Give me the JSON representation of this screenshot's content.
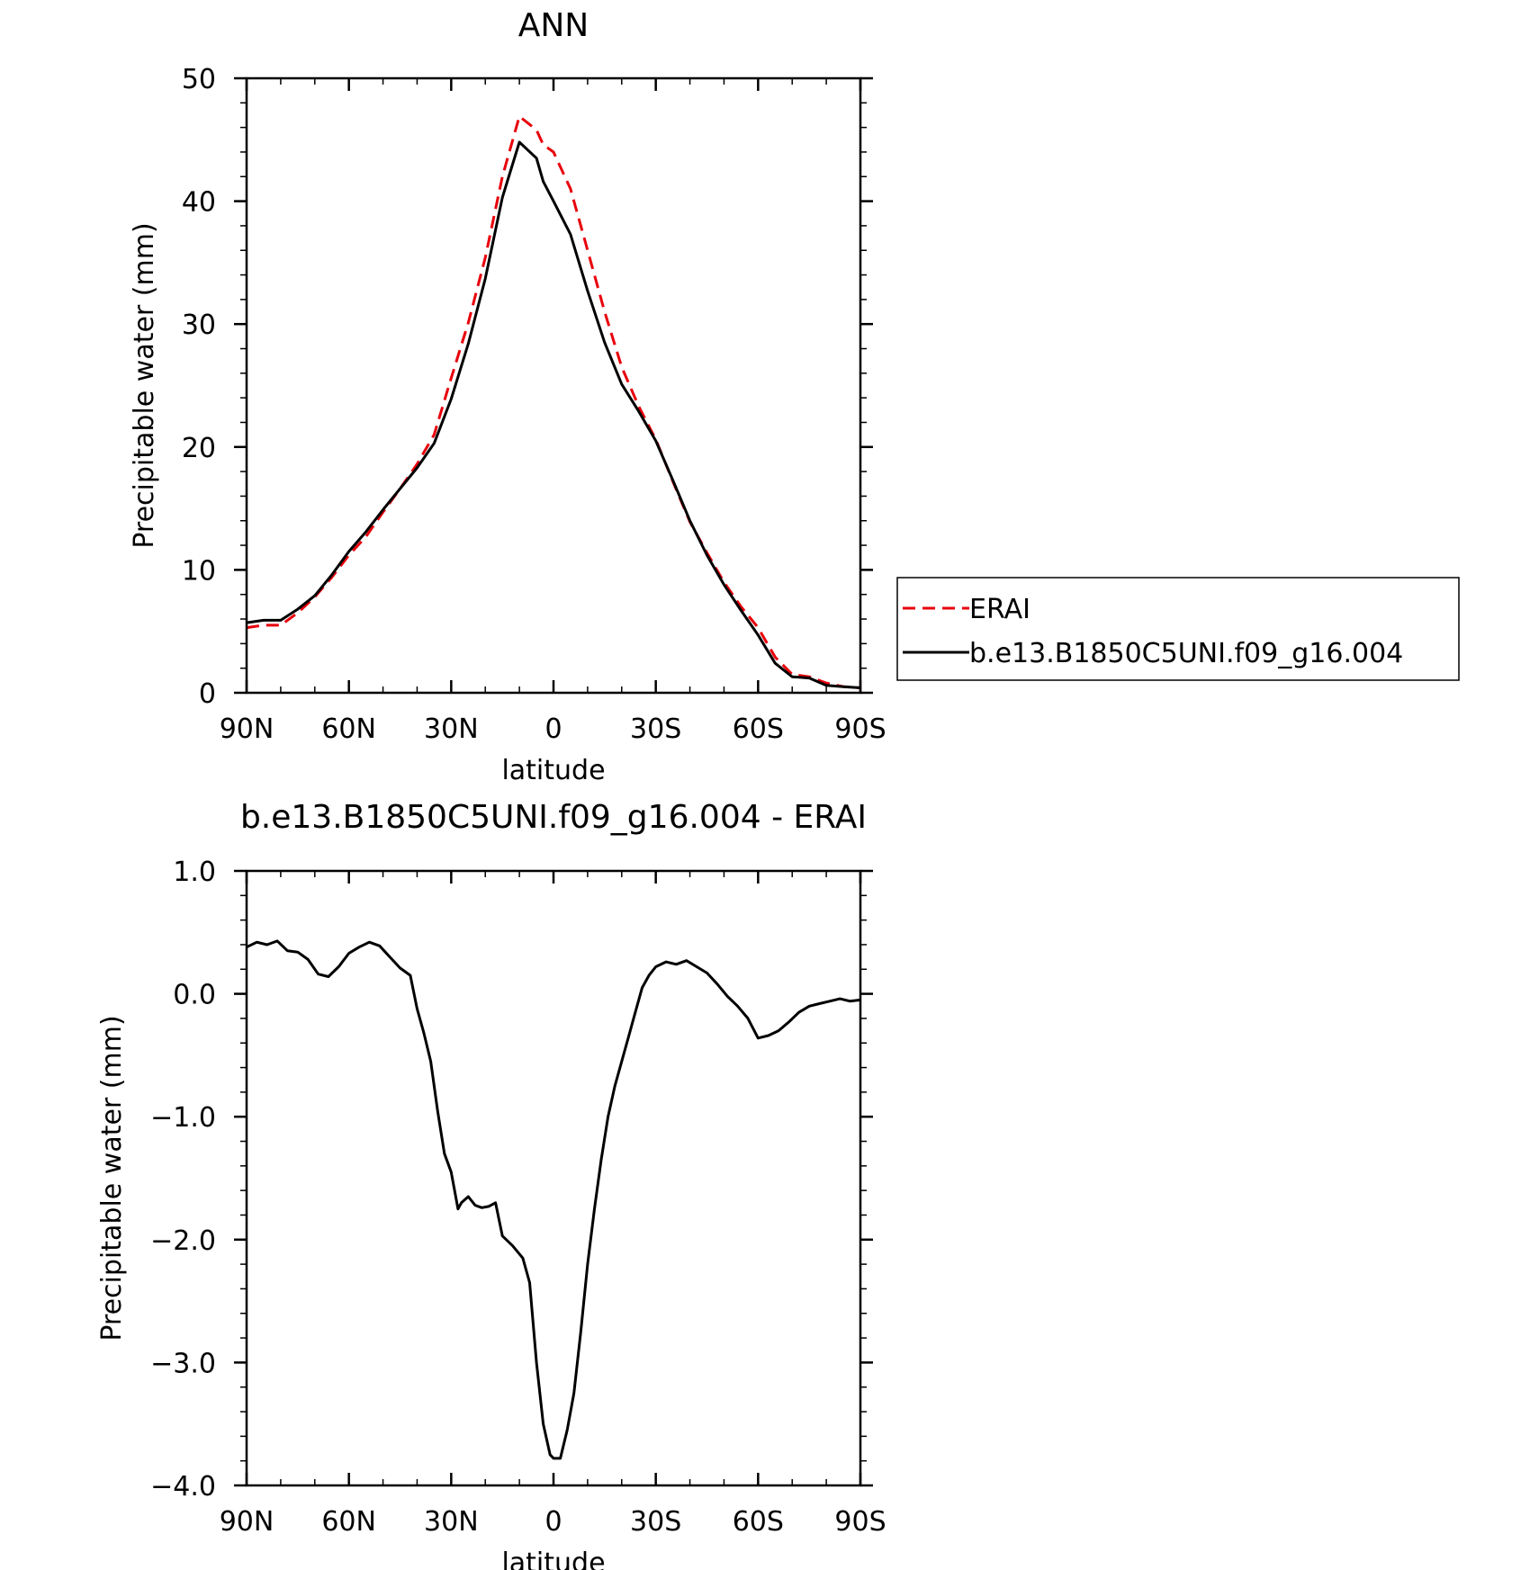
{
  "colors": {
    "model": "#000000",
    "obs": "#e8000b",
    "axis": "#000000",
    "background": "#ffffff"
  },
  "chart_data": [
    {
      "type": "line",
      "title": "ANN",
      "xlabel": "latitude",
      "ylabel": "Precipitable water (mm)",
      "xlim": [
        90,
        -90
      ],
      "ylim": [
        0,
        50
      ],
      "xticks": [
        90,
        60,
        30,
        0,
        -30,
        -60,
        -90
      ],
      "xtick_labels": [
        "90N",
        "60N",
        "30N",
        "0",
        "30S",
        "60S",
        "90S"
      ],
      "yticks": [
        0,
        10,
        20,
        30,
        40,
        50
      ],
      "ytick_labels": [
        "0",
        "10",
        "20",
        "30",
        "40",
        "50"
      ],
      "legend": {
        "position": "right",
        "entries": [
          "ERAI",
          "b.e13.B1850C5UNI.f09_g16.004"
        ]
      },
      "x": [
        90,
        85,
        80,
        75,
        70,
        65,
        60,
        55,
        50,
        45,
        40,
        35,
        30,
        25,
        20,
        15,
        10,
        5,
        3,
        0,
        -5,
        -10,
        -15,
        -20,
        -25,
        -30,
        -35,
        -40,
        -45,
        -50,
        -55,
        -60,
        -65,
        -70,
        -75,
        -80,
        -85,
        -90
      ],
      "series": [
        {
          "name": "ERAI",
          "style": "dashed",
          "values": [
            5.3,
            5.5,
            5.5,
            6.5,
            7.8,
            9.4,
            11.2,
            12.7,
            14.7,
            16.6,
            18.6,
            21.0,
            25.6,
            30.1,
            35.4,
            42.0,
            46.9,
            45.8,
            44.6,
            44.0,
            41.0,
            36.0,
            31.0,
            26.5,
            23.3,
            20.6,
            17.2,
            13.9,
            11.4,
            9.0,
            7.0,
            5.3,
            2.9,
            1.5,
            1.3,
            0.8,
            0.5,
            0.4
          ]
        },
        {
          "name": "b.e13.B1850C5UNI.f09_g16.004",
          "style": "solid",
          "values": [
            5.7,
            5.9,
            5.9,
            6.8,
            7.9,
            9.6,
            11.5,
            13.1,
            14.9,
            16.6,
            18.3,
            20.3,
            23.9,
            28.4,
            33.7,
            40.3,
            44.8,
            43.5,
            41.6,
            40.0,
            37.3,
            32.7,
            28.5,
            25.1,
            22.9,
            20.5,
            17.3,
            14.0,
            11.2,
            8.8,
            6.7,
            4.7,
            2.4,
            1.3,
            1.2,
            0.6,
            0.5,
            0.4
          ]
        }
      ]
    },
    {
      "type": "line",
      "title": "b.e13.B1850C5UNI.f09_g16.004 - ERAI",
      "xlabel": "latitude",
      "ylabel": "Precipitable water (mm)",
      "xlim": [
        90,
        -90
      ],
      "ylim": [
        -4.0,
        1.0
      ],
      "xticks": [
        90,
        60,
        30,
        0,
        -30,
        -60,
        -90
      ],
      "xtick_labels": [
        "90N",
        "60N",
        "30N",
        "0",
        "30S",
        "60S",
        "90S"
      ],
      "yticks": [
        1.0,
        0.0,
        -1.0,
        -2.0,
        -3.0,
        -4.0
      ],
      "ytick_labels": [
        "1.0",
        "0.0",
        "−1.0",
        "−2.0",
        "−3.0",
        "−4.0"
      ],
      "x": [
        90,
        87,
        84,
        81,
        78,
        75,
        72,
        69,
        66,
        63,
        60,
        57,
        54,
        51,
        48,
        45,
        42,
        40,
        38,
        36,
        34,
        32,
        30,
        28,
        27,
        25,
        23,
        21,
        19,
        17,
        15,
        12,
        9,
        7,
        5,
        3,
        1,
        0,
        -2,
        -4,
        -6,
        -8,
        -10,
        -12,
        -14,
        -16,
        -18,
        -20,
        -22,
        -24,
        -26,
        -28,
        -30,
        -33,
        -36,
        -39,
        -42,
        -45,
        -48,
        -51,
        -54,
        -57,
        -60,
        -63,
        -66,
        -69,
        -72,
        -75,
        -78,
        -81,
        -84,
        -87,
        -90
      ],
      "series": [
        {
          "name": "",
          "style": "solid",
          "values": [
            0.38,
            0.42,
            0.4,
            0.43,
            0.35,
            0.34,
            0.28,
            0.16,
            0.14,
            0.22,
            0.33,
            0.38,
            0.42,
            0.39,
            0.3,
            0.21,
            0.15,
            -0.12,
            -0.32,
            -0.55,
            -0.95,
            -1.3,
            -1.45,
            -1.75,
            -1.7,
            -1.65,
            -1.72,
            -1.74,
            -1.73,
            -1.7,
            -1.97,
            -2.05,
            -2.15,
            -2.35,
            -3.0,
            -3.5,
            -3.75,
            -3.78,
            -3.78,
            -3.55,
            -3.25,
            -2.75,
            -2.2,
            -1.75,
            -1.35,
            -1.0,
            -0.75,
            -0.55,
            -0.35,
            -0.15,
            0.05,
            0.15,
            0.22,
            0.26,
            0.24,
            0.27,
            0.22,
            0.17,
            0.08,
            -0.02,
            -0.1,
            -0.2,
            -0.36,
            -0.34,
            -0.3,
            -0.23,
            -0.15,
            -0.1,
            -0.08,
            -0.06,
            -0.04,
            -0.06,
            -0.05
          ]
        }
      ]
    }
  ]
}
